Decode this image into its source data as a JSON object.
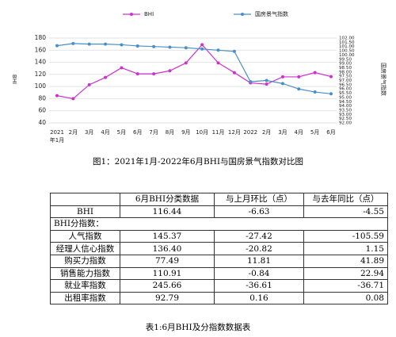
{
  "chart_data": {
    "type": "line",
    "categories": [
      "2021",
      "2月",
      "3月",
      "4月",
      "5月",
      "6月",
      "7月",
      "8月",
      "9月",
      "10月",
      "11月",
      "12月",
      "2022",
      "2月",
      "3月",
      "4月",
      "5月",
      "6月"
    ],
    "category_note": "年1月",
    "y_label": "BHI",
    "y2_label": "国房景气指数",
    "ylim": [
      40,
      180
    ],
    "yticks": [
      40,
      60,
      80,
      100,
      120,
      140,
      160,
      180
    ],
    "y2lim": [
      92,
      102
    ],
    "y2ticks": [
      {
        "value": 92,
        "label": "92.00"
      },
      {
        "value": 92.5,
        "label": "92.50"
      },
      {
        "value": 93,
        "label": "93.00"
      },
      {
        "value": 93.5,
        "label": "93.50"
      },
      {
        "value": 94,
        "label": "94.00"
      },
      {
        "value": 94.5,
        "label": "94.50"
      },
      {
        "value": 95,
        "label": "95.00"
      },
      {
        "value": 95.5,
        "label": "95.50"
      },
      {
        "value": 96,
        "label": "96.00"
      },
      {
        "value": 96.5,
        "label": "96.50"
      },
      {
        "value": 97,
        "label": "97.00"
      },
      {
        "value": 97.5,
        "label": "97.50"
      },
      {
        "value": 98,
        "label": "98.00"
      },
      {
        "value": 98.5,
        "label": "98.50"
      },
      {
        "value": 99,
        "label": "99.00"
      },
      {
        "value": 99.5,
        "label": "99.50"
      },
      {
        "value": 100,
        "label": "100.00"
      },
      {
        "value": 100.5,
        "label": "100.50"
      },
      {
        "value": 101,
        "label": "101.00"
      },
      {
        "value": 101.5,
        "label": "101.50"
      },
      {
        "value": 102,
        "label": "102.00"
      }
    ],
    "grid": true,
    "series": [
      {
        "name": "BHI",
        "color": "#cc33cc",
        "values": [
          85,
          80,
          103,
          115,
          131,
          121,
          121,
          126,
          139,
          169,
          139,
          123,
          106,
          104,
          116,
          116,
          123.07,
          116.44
        ]
      },
      {
        "name": "国房景气指数",
        "color": "#4a8fc8",
        "axis": "y2",
        "values": [
          101.1,
          101.36,
          101.29,
          101.29,
          101.21,
          101.07,
          101.0,
          100.93,
          100.86,
          100.71,
          100.57,
          100.43,
          96.86,
          97.0,
          96.64,
          96.0,
          95.64,
          95.43
        ]
      }
    ]
  },
  "figure_caption": "图1：2021年1月-2022年6月BHI与国房景气指数对比图",
  "table": {
    "header": [
      "6月BHI分类数据",
      "与上月环比（点）",
      "与去年同比（点）"
    ],
    "rows": [
      [
        "BHI",
        "116.44",
        "-6.63",
        "-4.55"
      ],
      [
        "BHI分指数："
      ],
      [
        "人气指数",
        "145.37",
        "-27.42",
        "-105.59"
      ],
      [
        "经理人信心指数",
        "136.40",
        "-20.82",
        "1.15"
      ],
      [
        "购买力指数",
        "77.49",
        "11.81",
        "41.89"
      ],
      [
        "销售能力指数",
        "110.91",
        "-0.84",
        "22.94"
      ],
      [
        "就业率指数",
        "245.66",
        "-36.61",
        "-36.71"
      ],
      [
        "出租率指数",
        "92.79",
        "0.16",
        "0.08"
      ]
    ]
  },
  "table_caption": "表1:6月BHI及分指数数据表"
}
